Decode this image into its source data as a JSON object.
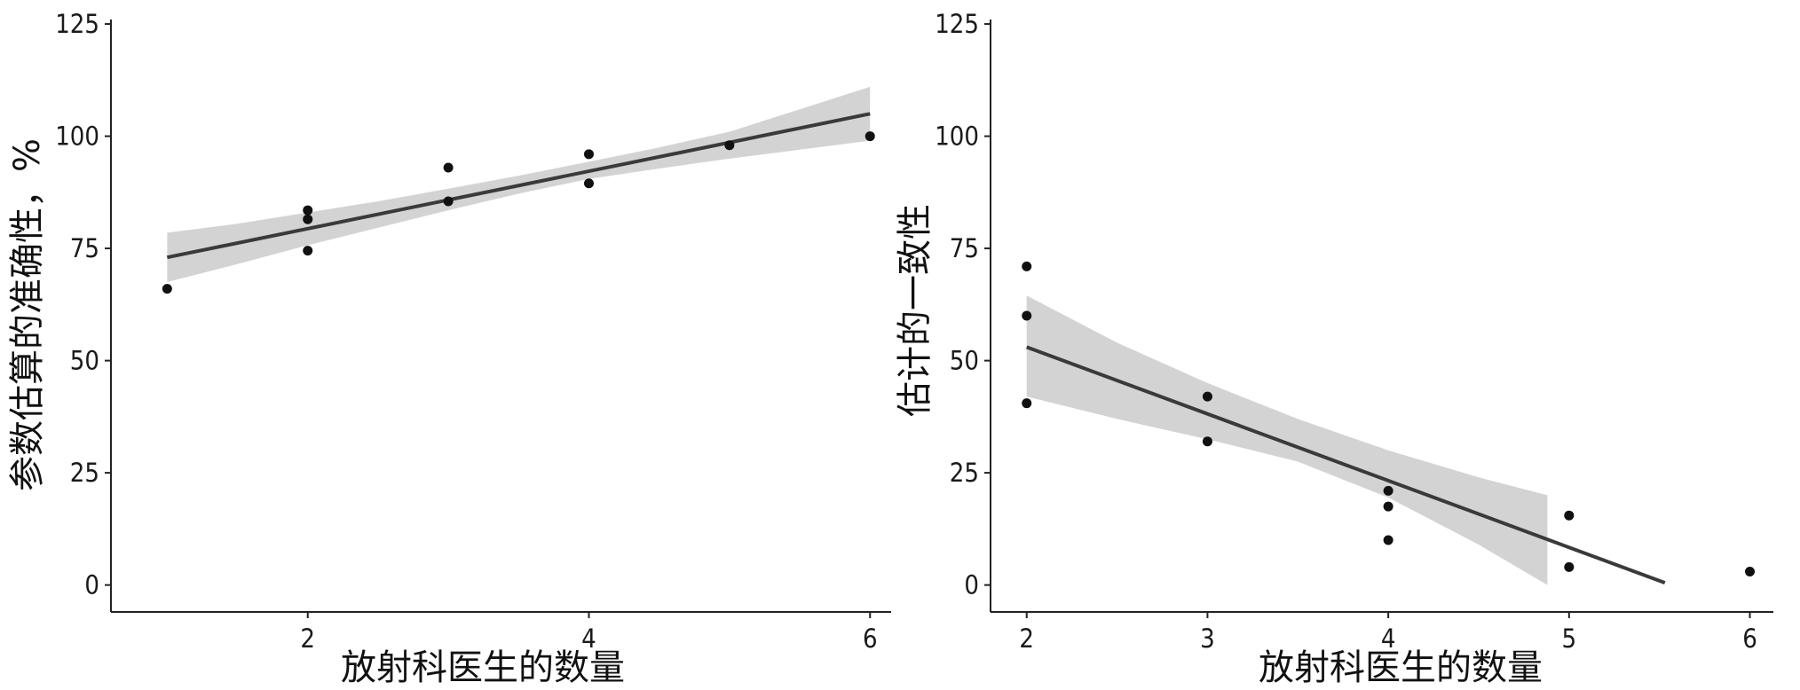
{
  "chart_data": [
    {
      "type": "scatter",
      "xlabel": "放射科医生的数量",
      "ylabel": "参数估算的准确性，%",
      "xlim": [
        0.6,
        6.15
      ],
      "ylim": [
        -6,
        126
      ],
      "xticks": [
        2,
        4,
        6
      ],
      "yticks": [
        0,
        25,
        50,
        75,
        100,
        125
      ],
      "points": [
        {
          "x": 1,
          "y": 66
        },
        {
          "x": 2,
          "y": 74.5
        },
        {
          "x": 2,
          "y": 81.5
        },
        {
          "x": 2,
          "y": 83.5
        },
        {
          "x": 3,
          "y": 85.5
        },
        {
          "x": 3,
          "y": 93
        },
        {
          "x": 4,
          "y": 89.5
        },
        {
          "x": 4,
          "y": 96
        },
        {
          "x": 5,
          "y": 98
        },
        {
          "x": 6,
          "y": 100
        }
      ],
      "fit_line": {
        "x": [
          1,
          6
        ],
        "y": [
          73,
          105
        ]
      },
      "confidence_band": {
        "x": [
          1,
          1.5,
          2,
          2.5,
          3,
          3.5,
          4,
          4.5,
          5,
          5.5,
          6
        ],
        "upper": [
          78.5,
          80.5,
          83,
          85.5,
          88.3,
          91.2,
          94.3,
          97.5,
          101,
          106,
          111
        ],
        "lower": [
          67.5,
          71.5,
          75.7,
          79.6,
          83.5,
          87.2,
          90.5,
          92.8,
          95,
          97,
          99
        ]
      },
      "grid": false,
      "colors": {
        "points": "#111111",
        "line": "#3a3a3a",
        "band": "#d3d3d3"
      }
    },
    {
      "type": "scatter",
      "xlabel": "放射科医生的数量",
      "ylabel": "估计的一致性",
      "xlim": [
        1.8,
        6.13
      ],
      "ylim": [
        -6,
        126
      ],
      "xticks": [
        2,
        3,
        4,
        5,
        6
      ],
      "yticks": [
        0,
        25,
        50,
        75,
        100,
        125
      ],
      "points": [
        {
          "x": 2,
          "y": 71
        },
        {
          "x": 2,
          "y": 60
        },
        {
          "x": 2,
          "y": 40.5
        },
        {
          "x": 3,
          "y": 42
        },
        {
          "x": 3,
          "y": 32
        },
        {
          "x": 4,
          "y": 21
        },
        {
          "x": 4,
          "y": 17.5
        },
        {
          "x": 4,
          "y": 10
        },
        {
          "x": 5,
          "y": 15.5
        },
        {
          "x": 5,
          "y": 4
        },
        {
          "x": 6,
          "y": 3
        }
      ],
      "fit_line": {
        "x": [
          2,
          5.53
        ],
        "y": [
          53,
          0.5
        ]
      },
      "confidence_band": {
        "x": [
          2,
          2.5,
          3,
          3.5,
          4,
          4.5,
          4.88
        ],
        "upper": [
          64.5,
          54,
          45,
          37,
          30,
          24,
          20
        ],
        "lower": [
          42,
          37,
          32.5,
          27.5,
          19.5,
          9,
          0
        ]
      },
      "grid": false,
      "colors": {
        "points": "#111111",
        "line": "#3a3a3a",
        "band": "#d3d3d3"
      }
    }
  ]
}
